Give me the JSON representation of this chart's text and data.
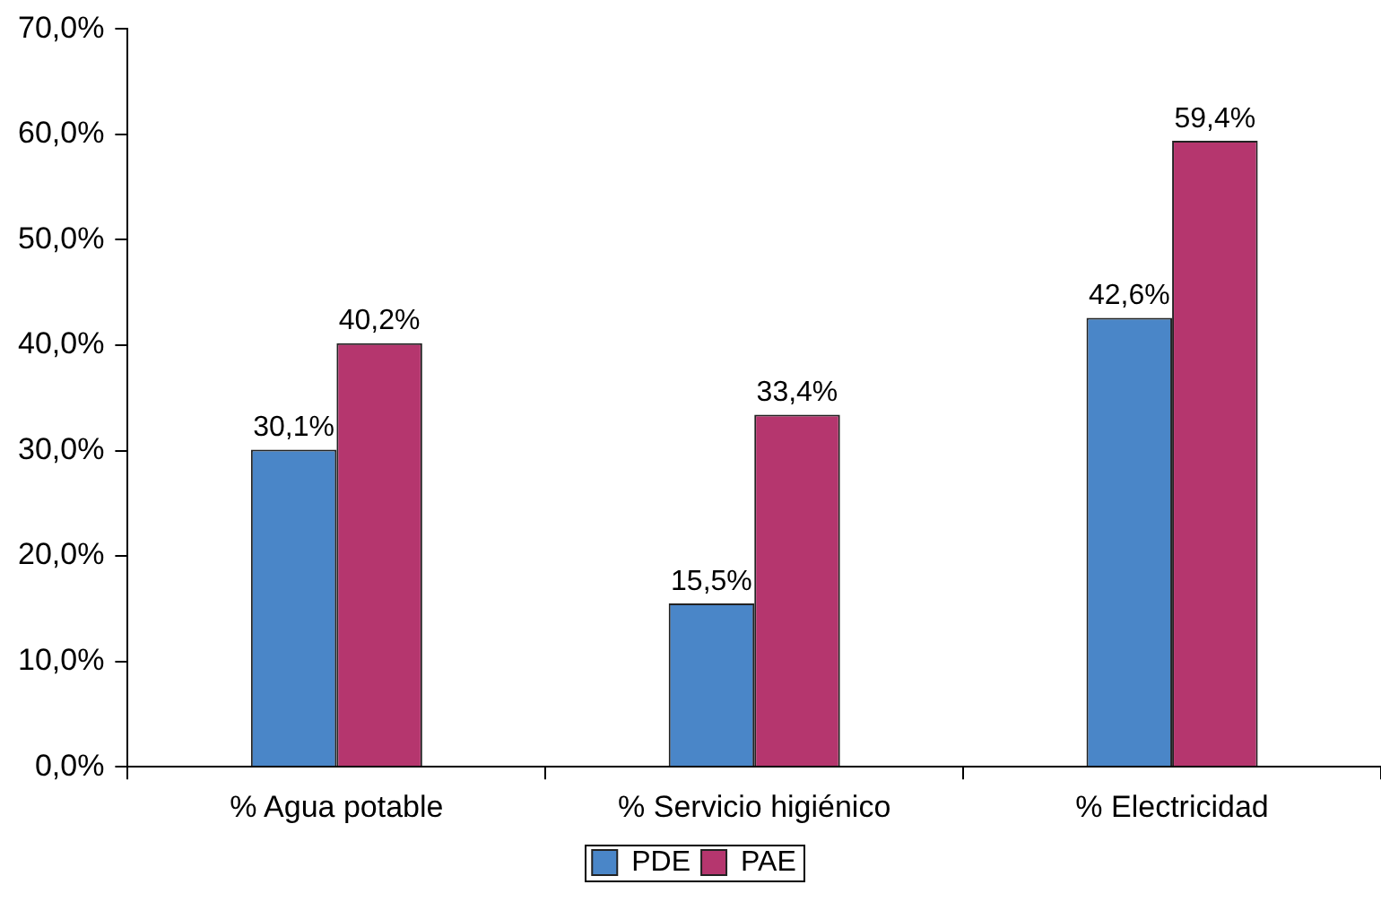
{
  "chart_data": {
    "type": "bar",
    "categories": [
      "% Agua potable",
      "% Servicio higiénico",
      "% Electricidad"
    ],
    "series": [
      {
        "name": "PDE",
        "color": "#4a86c8",
        "values": [
          30.1,
          15.5,
          42.6
        ],
        "value_labels": [
          "30,1%",
          "15,5%",
          "42,6%"
        ]
      },
      {
        "name": "PAE",
        "color": "#b5366e",
        "values": [
          40.2,
          33.4,
          59.4
        ],
        "value_labels": [
          "40,2%",
          "33,4%",
          "59,4%"
        ]
      }
    ],
    "ylim": [
      0,
      70
    ],
    "yticks": [
      {
        "value": 0,
        "label": "0,0%"
      },
      {
        "value": 10,
        "label": "10,0%"
      },
      {
        "value": 20,
        "label": "20,0%"
      },
      {
        "value": 30,
        "label": "30,0%"
      },
      {
        "value": 40,
        "label": "40,0%"
      },
      {
        "value": 50,
        "label": "50,0%"
      },
      {
        "value": 60,
        "label": "60,0%"
      },
      {
        "value": 70,
        "label": "70,0%"
      }
    ],
    "grid": false,
    "legend": "bottom"
  }
}
